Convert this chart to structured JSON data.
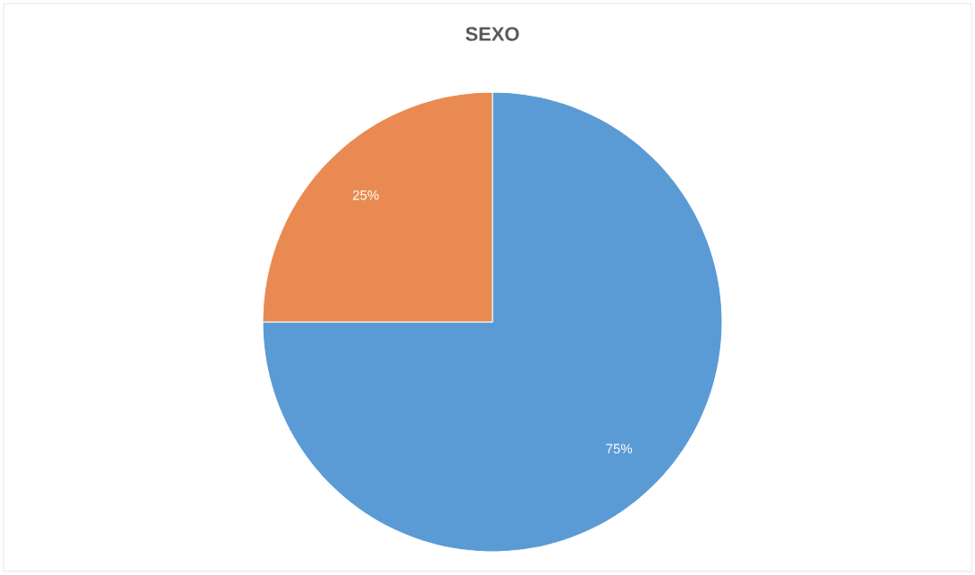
{
  "chart_data": {
    "type": "pie",
    "title": "SEXO",
    "categories": [
      null,
      null
    ],
    "values": [
      75,
      25
    ],
    "colors": [
      "#5a9bd5",
      "#e98a52"
    ],
    "value_labels": [
      "75%",
      "25%"
    ]
  }
}
